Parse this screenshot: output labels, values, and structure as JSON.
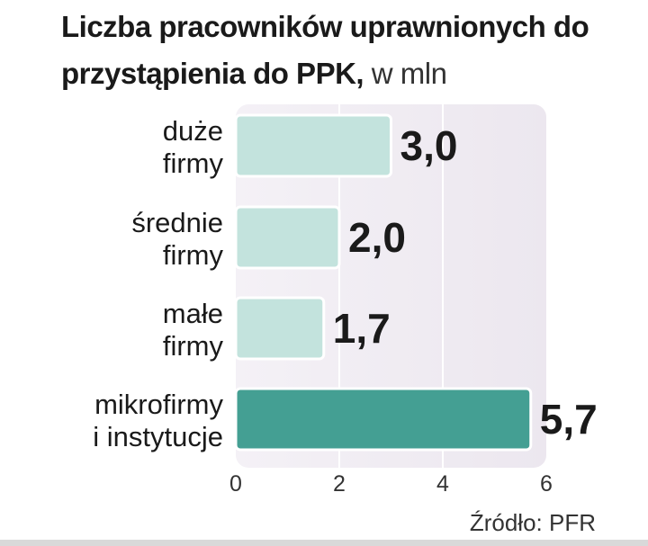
{
  "chart_data": {
    "type": "bar",
    "orientation": "horizontal",
    "title_bold": "Liczba pracowników uprawnionych do przystąpienia do PPK,",
    "title_unit": " w mln",
    "categories": [
      [
        "duże",
        "firmy"
      ],
      [
        "średnie",
        "firmy"
      ],
      [
        "małe",
        "firmy"
      ],
      [
        "mikrofirmy",
        "i instytucje"
      ]
    ],
    "values": [
      3.0,
      2.0,
      1.7,
      5.7
    ],
    "value_labels": [
      "3,0",
      "2,0",
      "1,7",
      "5,7"
    ],
    "xticks": [
      0,
      2,
      4,
      6
    ],
    "xtick_labels": [
      "0",
      "2",
      "4",
      "6"
    ],
    "xlim": [
      0,
      6
    ],
    "grid": true,
    "bar_colors": [
      "#c3e3dd",
      "#c3e3dd",
      "#c3e3dd",
      "#449f93"
    ],
    "source": "Źródło: PFR"
  }
}
